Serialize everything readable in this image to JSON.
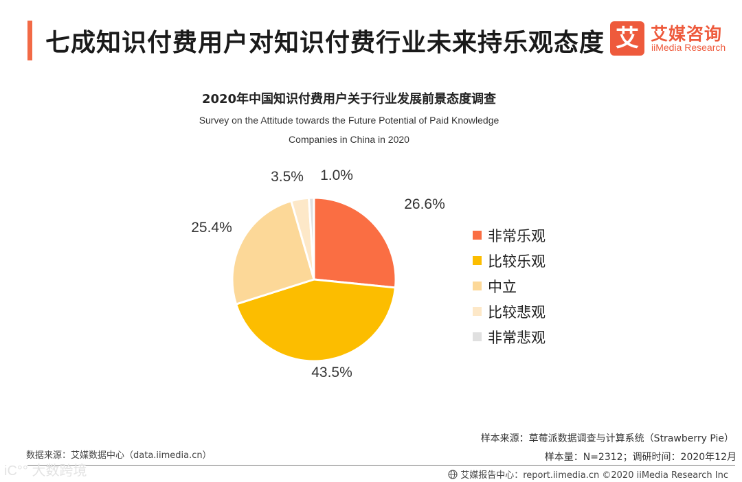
{
  "header": {
    "title": "七成知识付费用户对知识付费行业未来持乐观态度",
    "accent_color": "#f26a46"
  },
  "logo": {
    "mark": "艾",
    "name_cn": "艾媒咨询",
    "name_en": "iiMedia Research",
    "color": "#ee5a3c"
  },
  "chart_data": {
    "type": "pie",
    "title": "2020年中国知识付费用户关于行业发展前景态度调查",
    "subtitle_line1": "Survey on the Attitude towards the Future Potential of Paid Knowledge",
    "subtitle_line2": "Companies in China in 2020",
    "labels": [
      "非常乐观",
      "比较乐观",
      "中立",
      "比较悲观",
      "非常悲观"
    ],
    "values": [
      26.6,
      43.5,
      25.4,
      3.5,
      1.0
    ],
    "value_labels": [
      "26.6%",
      "43.5%",
      "25.4%",
      "3.5%",
      "1.0%"
    ],
    "colors": [
      "#fa6e43",
      "#fcbd00",
      "#fcd898",
      "#fde8c8",
      "#e0e0e0"
    ],
    "legend_position": "right"
  },
  "footer": {
    "data_source": "数据来源：艾媒数据中心（data.iimedia.cn）",
    "sample_source": "样本来源：草莓派数据调查与计算系统（Strawberry Pie）",
    "sample_info": "样本量：N=2312；调研时间：2020年12月",
    "report": "艾媒报告中心：report.iimedia.cn ©2020  iiMedia Research  Inc",
    "watermark": "iC°° 大数跨境"
  }
}
